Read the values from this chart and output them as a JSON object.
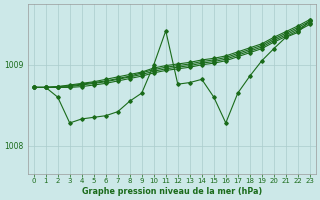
{
  "title": "Graphe pression niveau de la mer (hPa)",
  "bg_color": "#cce8e8",
  "grid_color": "#aacccc",
  "line_color": "#1a6b1a",
  "xlim": [
    -0.5,
    23.5
  ],
  "ylim": [
    1007.65,
    1009.75
  ],
  "yticks": [
    1008,
    1009
  ],
  "xticks": [
    0,
    1,
    2,
    3,
    4,
    5,
    6,
    7,
    8,
    9,
    10,
    11,
    12,
    13,
    14,
    15,
    16,
    17,
    18,
    19,
    20,
    21,
    22,
    23
  ],
  "noisy_line": [
    1008.72,
    1008.72,
    1008.6,
    1008.28,
    1008.33,
    1008.35,
    1008.37,
    1008.42,
    1008.55,
    1008.65,
    1009.0,
    1009.42,
    1008.76,
    1008.78,
    1008.82,
    1008.6,
    1008.28,
    1008.65,
    1008.86,
    1009.05,
    1009.2,
    1009.34,
    1009.4,
    1009.55
  ],
  "trend1": [
    1008.72,
    1008.72,
    1008.72,
    1008.72,
    1008.73,
    1008.75,
    1008.77,
    1008.8,
    1008.83,
    1008.86,
    1008.9,
    1008.93,
    1008.95,
    1008.97,
    1009.0,
    1009.02,
    1009.05,
    1009.1,
    1009.15,
    1009.2,
    1009.28,
    1009.35,
    1009.42,
    1009.5
  ],
  "trend2": [
    1008.72,
    1008.72,
    1008.72,
    1008.73,
    1008.75,
    1008.77,
    1008.79,
    1008.82,
    1008.85,
    1008.88,
    1008.92,
    1008.95,
    1008.97,
    1008.99,
    1009.02,
    1009.04,
    1009.07,
    1009.12,
    1009.17,
    1009.22,
    1009.3,
    1009.37,
    1009.44,
    1009.52
  ],
  "trend3": [
    1008.72,
    1008.72,
    1008.73,
    1008.74,
    1008.76,
    1008.78,
    1008.8,
    1008.83,
    1008.86,
    1008.9,
    1008.94,
    1008.97,
    1008.99,
    1009.01,
    1009.04,
    1009.06,
    1009.09,
    1009.14,
    1009.19,
    1009.24,
    1009.32,
    1009.39,
    1009.46,
    1009.54
  ],
  "trend4": [
    1008.72,
    1008.72,
    1008.73,
    1008.75,
    1008.77,
    1008.79,
    1008.82,
    1008.85,
    1008.88,
    1008.91,
    1008.96,
    1008.99,
    1009.01,
    1009.03,
    1009.06,
    1009.08,
    1009.11,
    1009.16,
    1009.21,
    1009.26,
    1009.34,
    1009.41,
    1009.48,
    1009.56
  ]
}
